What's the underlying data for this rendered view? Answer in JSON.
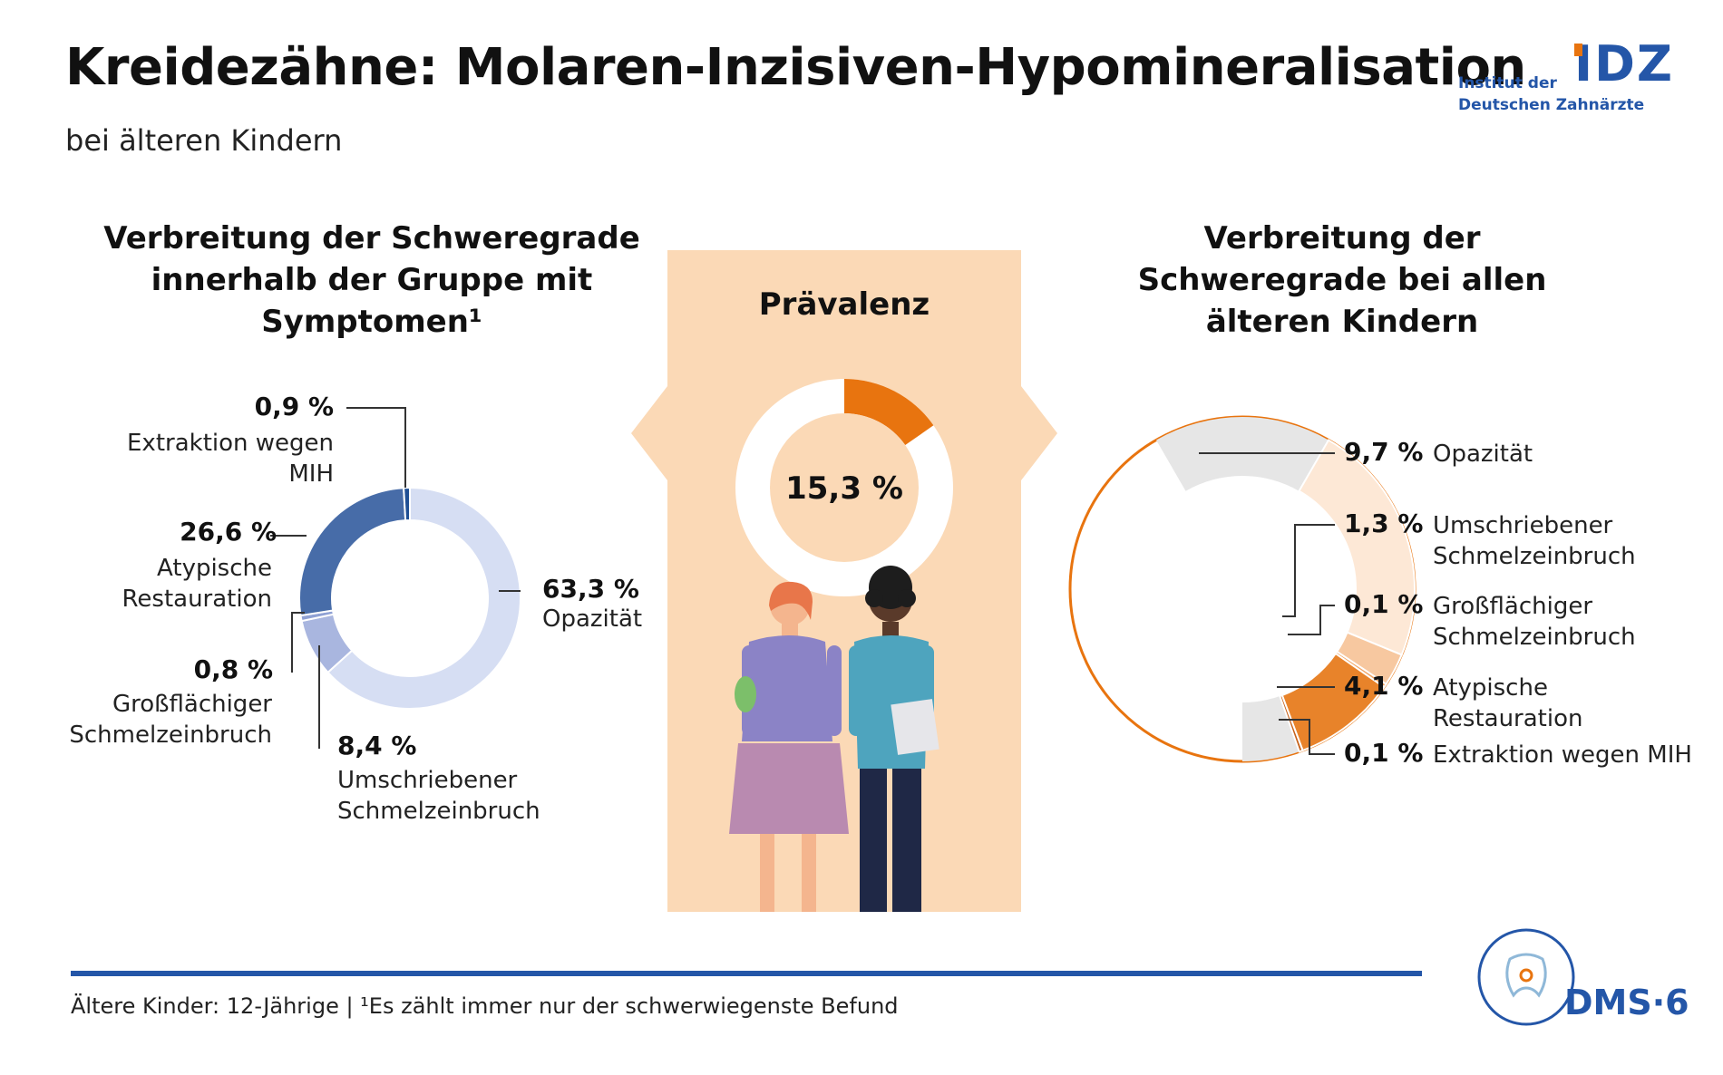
{
  "title": "Kreidezähne: Molaren-Inzisiven-Hypomineralisation",
  "subtitle": "bei älteren Kindern",
  "logo": {
    "line1": "Institut der",
    "line2": "Deutschen Zahnärzte",
    "mark": "IDZ"
  },
  "colors": {
    "accent": "#e8740f",
    "brand_blue": "#2456a8",
    "panel": "#fbd9b6"
  },
  "chart_data": [
    {
      "type": "pie",
      "donut": true,
      "title": "Verbreitung der Schweregrade innerhalb der Gruppe mit Symptomen¹",
      "slices": [
        {
          "pct": "63,3 %",
          "label": "Opazität",
          "value": 63.3,
          "color": "#d6def3"
        },
        {
          "pct": "8,4 %",
          "label": "Umschriebener Schmelzeinbruch",
          "value": 8.4,
          "color": "#a9b6df"
        },
        {
          "pct": "0,8 %",
          "label": "Großflächiger Schmelzeinbruch",
          "value": 0.8,
          "color": "#8fa1d4"
        },
        {
          "pct": "26,6 %",
          "label": "Atypische Restauration",
          "value": 26.6,
          "color": "#476ca8"
        },
        {
          "pct": "0,9 %",
          "label": "Extraktion wegen MIH",
          "value": 0.9,
          "color": "#1f4f94"
        }
      ]
    },
    {
      "type": "pie",
      "donut": true,
      "title": "Prävalenz",
      "value_label": "15,3 %",
      "value": 15.3,
      "colors": {
        "fill": "#e8740f",
        "rest": "#ffffff"
      }
    },
    {
      "type": "pie",
      "donut": true,
      "title": "Verbreitung der Schweregrade bei allen älteren Kindern",
      "slices": [
        {
          "pct": "9,7 %",
          "label": "Opazität",
          "value": 9.7,
          "color": "#fde8d6"
        },
        {
          "pct": "1,3 %",
          "label": "Umschriebener Schmelzeinbruch",
          "value": 1.3,
          "color": "#f7c8a0"
        },
        {
          "pct": "0,1 %",
          "label": "Großflächiger Schmelzeinbruch",
          "value": 0.1,
          "color": "#f1a565"
        },
        {
          "pct": "4,1 %",
          "label": "Atypische Restauration",
          "value": 4.1,
          "color": "#e8832a"
        },
        {
          "pct": "0,1 %",
          "label": "Extraktion wegen MIH",
          "value": 0.1,
          "color": "#c7621a"
        }
      ]
    }
  ],
  "footnote": "Ältere Kinder: 12-Jährige | ¹Es zählt immer nur der schwerwiegenste Befund",
  "badge": "DMS·6"
}
